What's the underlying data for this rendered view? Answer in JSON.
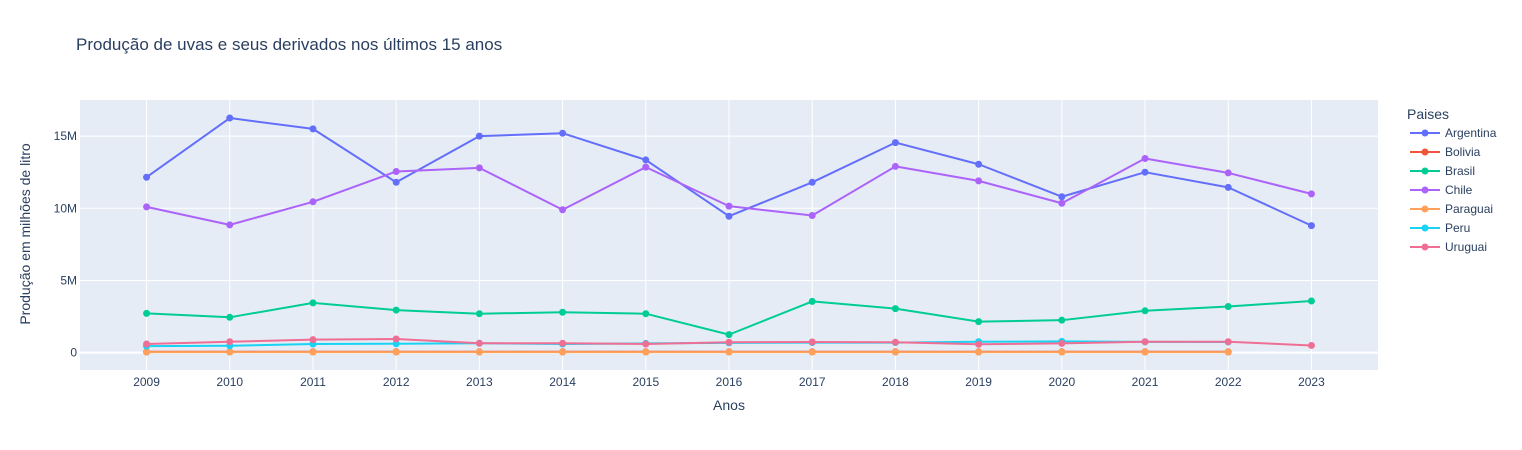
{
  "chart_data": {
    "type": "line",
    "title": "Produção de uvas e seus derivados nos últimos 15 anos",
    "xlabel": "Anos",
    "ylabel": "Produção em milhões de litro",
    "legend_title": "Paises",
    "legend_position": "right",
    "grid": true,
    "x": [
      2009,
      2010,
      2011,
      2012,
      2013,
      2014,
      2015,
      2016,
      2017,
      2018,
      2019,
      2020,
      2021,
      2022,
      2023
    ],
    "xlim": [
      2008.2,
      2023.8
    ],
    "ylim": [
      -1200000,
      17500000
    ],
    "yticks": [
      0,
      5000000,
      10000000,
      15000000
    ],
    "ytick_labels": [
      "0",
      "5M",
      "10M",
      "15M"
    ],
    "colors": {
      "plot_bg": "#e5ecf6",
      "grid": "#ffffff"
    },
    "series": [
      {
        "name": "Argentina",
        "color": "#636efa",
        "values": [
          12150000,
          16250000,
          15500000,
          11800000,
          15000000,
          15200000,
          13350000,
          9450000,
          11800000,
          14550000,
          13050000,
          10800000,
          12500000,
          11450000,
          8800000
        ]
      },
      {
        "name": "Bolivia",
        "color": "#ef553b",
        "values": [
          60000,
          60000,
          60000,
          60000,
          60000,
          60000,
          60000,
          60000,
          60000,
          60000,
          60000,
          60000,
          60000,
          60000,
          null
        ]
      },
      {
        "name": "Brasil",
        "color": "#00cc96",
        "values": [
          2720000,
          2450000,
          3450000,
          2950000,
          2700000,
          2800000,
          2700000,
          1250000,
          3550000,
          3050000,
          2150000,
          2250000,
          2900000,
          3200000,
          3580000
        ]
      },
      {
        "name": "Chile",
        "color": "#ab63fa",
        "values": [
          10100000,
          8850000,
          10450000,
          12550000,
          12800000,
          9900000,
          12850000,
          10150000,
          9500000,
          12900000,
          11900000,
          10350000,
          13450000,
          12450000,
          11000000
        ]
      },
      {
        "name": "Paraguai",
        "color": "#ffa15a",
        "values": [
          40000,
          40000,
          40000,
          40000,
          40000,
          40000,
          40000,
          40000,
          40000,
          40000,
          40000,
          40000,
          40000,
          40000,
          null
        ]
      },
      {
        "name": "Peru",
        "color": "#19d3f3",
        "values": [
          450000,
          480000,
          600000,
          620000,
          650000,
          600000,
          640000,
          680000,
          700000,
          700000,
          760000,
          780000,
          750000,
          740000,
          null
        ]
      },
      {
        "name": "Uruguai",
        "color": "#ef6e94",
        "values": [
          600000,
          760000,
          900000,
          950000,
          650000,
          650000,
          600000,
          720000,
          740000,
          720000,
          580000,
          640000,
          760000,
          760000,
          500000
        ]
      }
    ]
  }
}
